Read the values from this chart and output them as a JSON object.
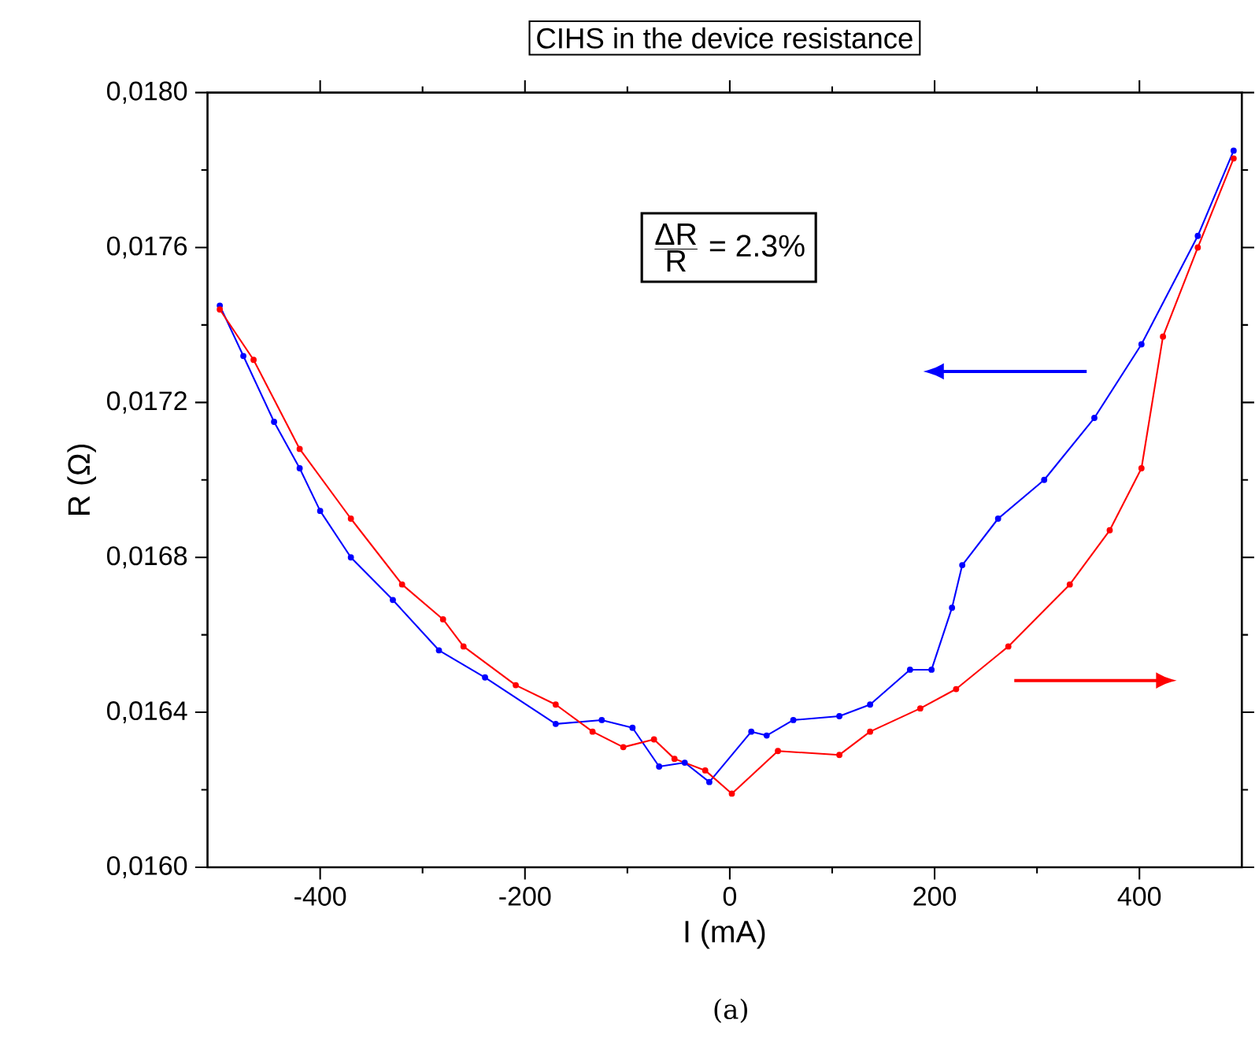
{
  "chart_data": {
    "type": "line",
    "title": "CIHS in the device resistance",
    "xlabel": "I (mA)",
    "ylabel": "R (Ω)",
    "annotations": [
      "\\frac{\\mbox{ΔR}}{\\mbox{R}}\\mbox{ = 2.3\\%}",
      "(a)"
    ],
    "xlim": [
      -510,
      500
    ],
    "xticks": [
      -400,
      -200,
      0,
      200,
      400
    ],
    "ylim": [
      0.016,
      0.018
    ],
    "yticks": [
      {
        "value": 0.016,
        "label": "0,0160"
      },
      {
        "value": 0.0164,
        "label": "0,0164"
      },
      {
        "value": 0.0168,
        "label": "0,0168"
      },
      {
        "value": 0.0172,
        "label": "0,0172"
      },
      {
        "value": 0.0176,
        "label": "0,0176"
      },
      {
        "value": 0.018,
        "label": "0,0180"
      }
    ],
    "marker": "circle",
    "line_style": "solid",
    "series": [
      {
        "color": "#0000ff",
        "x": [
          -498,
          -475,
          -445,
          -420,
          -400,
          -370,
          -329,
          -284,
          -239,
          -170,
          -125,
          -95,
          -69,
          -44,
          -20,
          21,
          36,
          62,
          107,
          137,
          176,
          197,
          217,
          227,
          262,
          307,
          356,
          402,
          457,
          492
        ],
        "values": [
          0.01745,
          0.01732,
          0.01715,
          0.01703,
          0.01692,
          0.0168,
          0.01669,
          0.01656,
          0.01649,
          0.01637,
          0.01638,
          0.01636,
          0.01626,
          0.01627,
          0.01622,
          0.01635,
          0.01634,
          0.01638,
          0.01639,
          0.01642,
          0.01651,
          0.01651,
          0.01667,
          0.01678,
          0.0169,
          0.017,
          0.01716,
          0.01735,
          0.01763,
          0.01785
        ]
      },
      {
        "color": "#ff0000",
        "x": [
          -498,
          -465,
          -420,
          -370,
          -320,
          -280,
          -260,
          -209,
          -170,
          -134,
          -104,
          -74,
          -54,
          -24,
          2,
          47,
          107,
          137,
          186,
          221,
          272,
          332,
          371,
          402,
          423,
          457,
          492
        ],
        "values": [
          0.01744,
          0.01731,
          0.01708,
          0.0169,
          0.01673,
          0.01664,
          0.01657,
          0.01647,
          0.01642,
          0.01635,
          0.01631,
          0.01633,
          0.01628,
          0.01625,
          0.01619,
          0.0163,
          0.01629,
          0.01635,
          0.01641,
          0.01646,
          0.01657,
          0.01673,
          0.01687,
          0.01703,
          0.01737,
          0.0176,
          0.01783
        ]
      }
    ]
  }
}
